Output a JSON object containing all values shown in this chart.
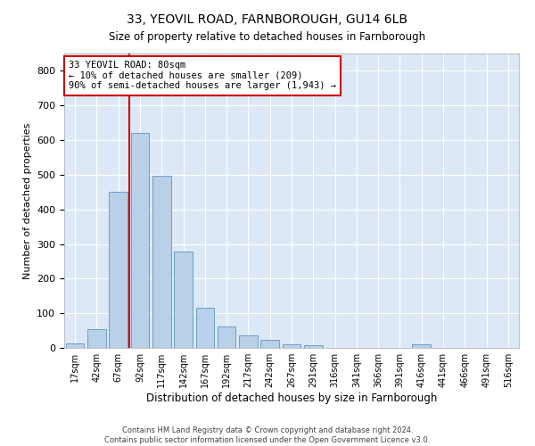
{
  "title": "33, YEOVIL ROAD, FARNBOROUGH, GU14 6LB",
  "subtitle": "Size of property relative to detached houses in Farnborough",
  "xlabel": "Distribution of detached houses by size in Farnborough",
  "ylabel": "Number of detached properties",
  "bar_color": "#b8d0e8",
  "bar_edge_color": "#6aa0c8",
  "bg_color": "#dce8f5",
  "grid_color": "#ffffff",
  "vline_x": 2,
  "vline_color": "#cc0000",
  "annotation_text": "33 YEOVIL ROAD: 80sqm\n← 10% of detached houses are smaller (209)\n90% of semi-detached houses are larger (1,943) →",
  "annotation_box_color": "#ffffff",
  "annotation_box_edge": "#cc0000",
  "bin_labels": [
    "17sqm",
    "42sqm",
    "67sqm",
    "92sqm",
    "117sqm",
    "142sqm",
    "167sqm",
    "192sqm",
    "217sqm",
    "242sqm",
    "267sqm",
    "291sqm",
    "316sqm",
    "341sqm",
    "366sqm",
    "391sqm",
    "416sqm",
    "441sqm",
    "466sqm",
    "491sqm",
    "516sqm"
  ],
  "bar_heights": [
    12,
    55,
    450,
    620,
    498,
    277,
    115,
    61,
    35,
    22,
    10,
    8,
    0,
    0,
    0,
    0,
    10,
    0,
    0,
    0,
    0
  ],
  "ylim": [
    0,
    850
  ],
  "yticks": [
    0,
    100,
    200,
    300,
    400,
    500,
    600,
    700,
    800
  ],
  "footer": "Contains HM Land Registry data © Crown copyright and database right 2024.\nContains public sector information licensed under the Open Government Licence v3.0."
}
